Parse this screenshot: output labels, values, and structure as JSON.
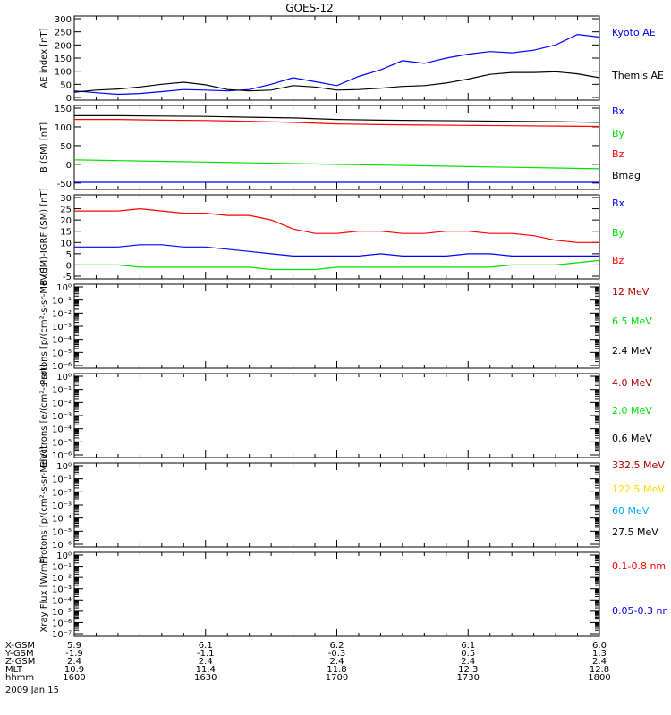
{
  "title": "GOES-12",
  "date": "2009 Jan 15",
  "colors": {
    "blue": "#0000ff",
    "green": "#00e000",
    "red": "#ff0000",
    "black": "#000000",
    "darkred": "#b00000",
    "gold": "#ffd700",
    "cyan": "#00a8ff"
  },
  "x_axis": {
    "tick_times": [
      "1600",
      "1630",
      "1700",
      "1730",
      "1800"
    ],
    "row_labels": [
      "X-GSM",
      "Y-GSM",
      "Z-GSM",
      "MLT",
      "hhmm"
    ],
    "rows": [
      [
        "5.9",
        "6.1",
        "6.2",
        "6.1",
        "6.0"
      ],
      [
        "-1.9",
        "-1.1",
        "-0.3",
        "0.5",
        "1.3"
      ],
      [
        "2.4",
        "2.4",
        "2.4",
        "2.4",
        "2.4"
      ],
      [
        "10.9",
        "11.4",
        "11.8",
        "12.3",
        "12.8"
      ],
      [
        "1600",
        "1630",
        "1700",
        "1730",
        "1800"
      ]
    ]
  },
  "chart_data": [
    {
      "type": "line",
      "ylabel": "AE index [nT]",
      "ylim": [
        0,
        300
      ],
      "yticks": [
        "0",
        "50",
        "100",
        "150",
        "200",
        "250",
        "300"
      ],
      "legend": [
        "Kyoto AE",
        "Themis AE"
      ],
      "x": [
        1600,
        1605,
        1610,
        1615,
        1620,
        1625,
        1630,
        1635,
        1640,
        1645,
        1650,
        1655,
        1700,
        1705,
        1710,
        1715,
        1720,
        1725,
        1730,
        1735,
        1740,
        1745,
        1750,
        1755,
        1800
      ],
      "series": [
        {
          "name": "Kyoto AE",
          "color": "#0000ff",
          "values": [
            25,
            18,
            12,
            15,
            22,
            30,
            28,
            25,
            30,
            50,
            75,
            60,
            45,
            80,
            105,
            140,
            130,
            150,
            165,
            175,
            170,
            180,
            200,
            240,
            230
          ]
        },
        {
          "name": "Themis AE",
          "color": "#000000",
          "values": [
            20,
            28,
            32,
            40,
            50,
            58,
            48,
            30,
            25,
            28,
            45,
            40,
            28,
            30,
            35,
            42,
            45,
            55,
            70,
            88,
            95,
            95,
            98,
            90,
            75
          ]
        }
      ]
    },
    {
      "type": "line",
      "ylabel": "B (SM) [nT]",
      "ylim": [
        -60,
        150
      ],
      "yticks": [
        "-50",
        "0",
        "50",
        "100",
        "150"
      ],
      "legend": [
        "Bx",
        "By",
        "Bz",
        "Bmag"
      ],
      "x": [
        1600,
        1610,
        1620,
        1630,
        1640,
        1650,
        1700,
        1710,
        1720,
        1730,
        1740,
        1750,
        1800
      ],
      "series": [
        {
          "name": "Bx",
          "color": "#0000ff",
          "values": [
            -48,
            -48,
            -48,
            -48,
            -48,
            -48,
            -48,
            -48,
            -48,
            -48,
            -48,
            -48,
            -48
          ]
        },
        {
          "name": "By",
          "color": "#00e000",
          "values": [
            12,
            10,
            8,
            6,
            4,
            2,
            0,
            -2,
            -4,
            -6,
            -8,
            -10,
            -12
          ]
        },
        {
          "name": "Bz",
          "color": "#ff0000",
          "values": [
            120,
            120,
            118,
            117,
            115,
            112,
            108,
            106,
            105,
            104,
            103,
            102,
            101
          ]
        },
        {
          "name": "Bmag",
          "color": "#000000",
          "values": [
            130,
            130,
            129,
            128,
            126,
            124,
            120,
            118,
            117,
            116,
            115,
            114,
            112
          ]
        }
      ]
    },
    {
      "type": "line",
      "ylabel": "B (SM)-IGRF (SM) [nT]",
      "ylim": [
        -5,
        30
      ],
      "yticks": [
        "-5",
        "0",
        "5",
        "10",
        "15",
        "20",
        "25",
        "30"
      ],
      "legend": [
        "Bx",
        "By",
        "Bz"
      ],
      "x": [
        1600,
        1605,
        1610,
        1615,
        1620,
        1625,
        1630,
        1635,
        1640,
        1645,
        1650,
        1655,
        1700,
        1705,
        1710,
        1715,
        1720,
        1725,
        1730,
        1735,
        1740,
        1745,
        1750,
        1755,
        1800
      ],
      "series": [
        {
          "name": "Bx",
          "color": "#0000ff",
          "values": [
            8,
            8,
            8,
            9,
            9,
            8,
            8,
            7,
            6,
            5,
            4,
            4,
            4,
            4,
            5,
            4,
            4,
            4,
            5,
            5,
            4,
            4,
            4,
            4,
            4
          ]
        },
        {
          "name": "By",
          "color": "#00e000",
          "values": [
            0,
            0,
            0,
            -1,
            -1,
            -1,
            -1,
            -1,
            -1,
            -2,
            -2,
            -2,
            -1,
            -1,
            -1,
            -1,
            -1,
            -1,
            -1,
            -1,
            0,
            0,
            0,
            1,
            2
          ]
        },
        {
          "name": "Bz",
          "color": "#ff0000",
          "values": [
            24,
            24,
            24,
            25,
            24,
            23,
            23,
            22,
            22,
            20,
            16,
            14,
            14,
            15,
            15,
            14,
            14,
            15,
            15,
            14,
            14,
            13,
            11,
            10,
            10
          ]
        }
      ]
    },
    {
      "type": "line",
      "ylabel": "Protons [p/(cm²-s-sr-MeV)]",
      "yscale": "log",
      "yticks": [
        "10⁰",
        "10⁻¹",
        "10⁻²",
        "10⁻³",
        "10⁻⁴",
        "10⁻⁵",
        "10⁻⁶"
      ],
      "legend": [
        "12 MeV",
        "6.5 MeV",
        "2.4 MeV"
      ],
      "legend_colors": [
        "#b00000",
        "#00e000",
        "#000000"
      ]
    },
    {
      "type": "line",
      "ylabel": "Electrons [e/(cm²-s-sr)]",
      "yscale": "log",
      "yticks": [
        "10⁰",
        "10⁻¹",
        "10⁻²",
        "10⁻³",
        "10⁻⁴",
        "10⁻⁵",
        "10⁻⁶"
      ],
      "legend": [
        "4.0 MeV",
        "2.0 MeV",
        "0.6 MeV"
      ],
      "legend_colors": [
        "#b00000",
        "#00e000",
        "#000000"
      ]
    },
    {
      "type": "line",
      "ylabel": "Protons [p/(cm²-s-sr-MeV)]",
      "yscale": "log",
      "yticks": [
        "10⁰",
        "10⁻¹",
        "10⁻²",
        "10⁻³",
        "10⁻⁴",
        "10⁻⁵",
        "10⁻⁶"
      ],
      "legend": [
        "332.5 MeV",
        "122.5 MeV",
        "60 MeV",
        "27.5 MeV"
      ],
      "legend_colors": [
        "#b00000",
        "#ffd700",
        "#00a8ff",
        "#000000"
      ]
    },
    {
      "type": "line",
      "ylabel": "Xray Flux [W/m²]",
      "yscale": "log",
      "yticks": [
        "10⁰",
        "10⁻¹",
        "10⁻²",
        "10⁻³",
        "10⁻⁴",
        "10⁻⁵",
        "10⁻⁶",
        "10⁻⁷"
      ],
      "legend": [
        "0.1-0.8 nm",
        "0.05-0.3 nr"
      ],
      "legend_colors": [
        "#ff0000",
        "#0000ff"
      ]
    }
  ]
}
